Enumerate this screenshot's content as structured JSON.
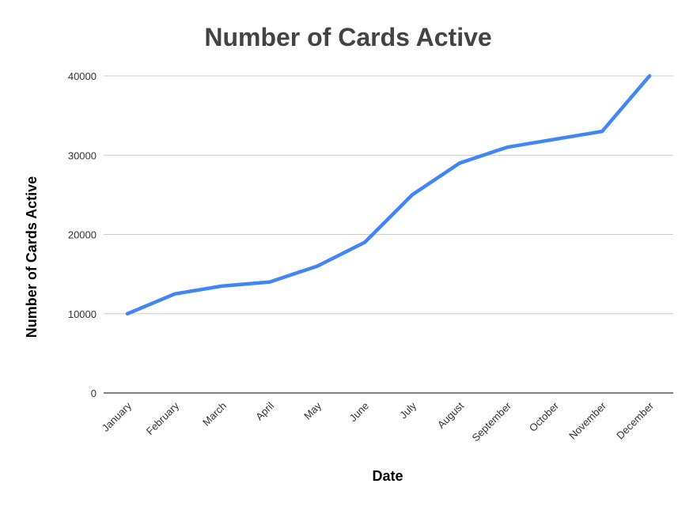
{
  "chart_data": {
    "type": "line",
    "title": "Number of Cards Active",
    "xlabel": "Date",
    "ylabel": "Number of Cards Active",
    "categories": [
      "January",
      "February",
      "March",
      "April",
      "May",
      "June",
      "July",
      "August",
      "September",
      "October",
      "November",
      "December"
    ],
    "series": [
      {
        "values": [
          10000,
          12500,
          13500,
          14000,
          16000,
          19000,
          25000,
          29000,
          31000,
          32000,
          33000,
          40000
        ],
        "color": "#4285f4"
      }
    ],
    "ylim": [
      0,
      40000
    ],
    "yticks": [
      "0",
      "10000",
      "20000",
      "30000",
      "40000"
    ],
    "grid": true,
    "legend": "none"
  }
}
